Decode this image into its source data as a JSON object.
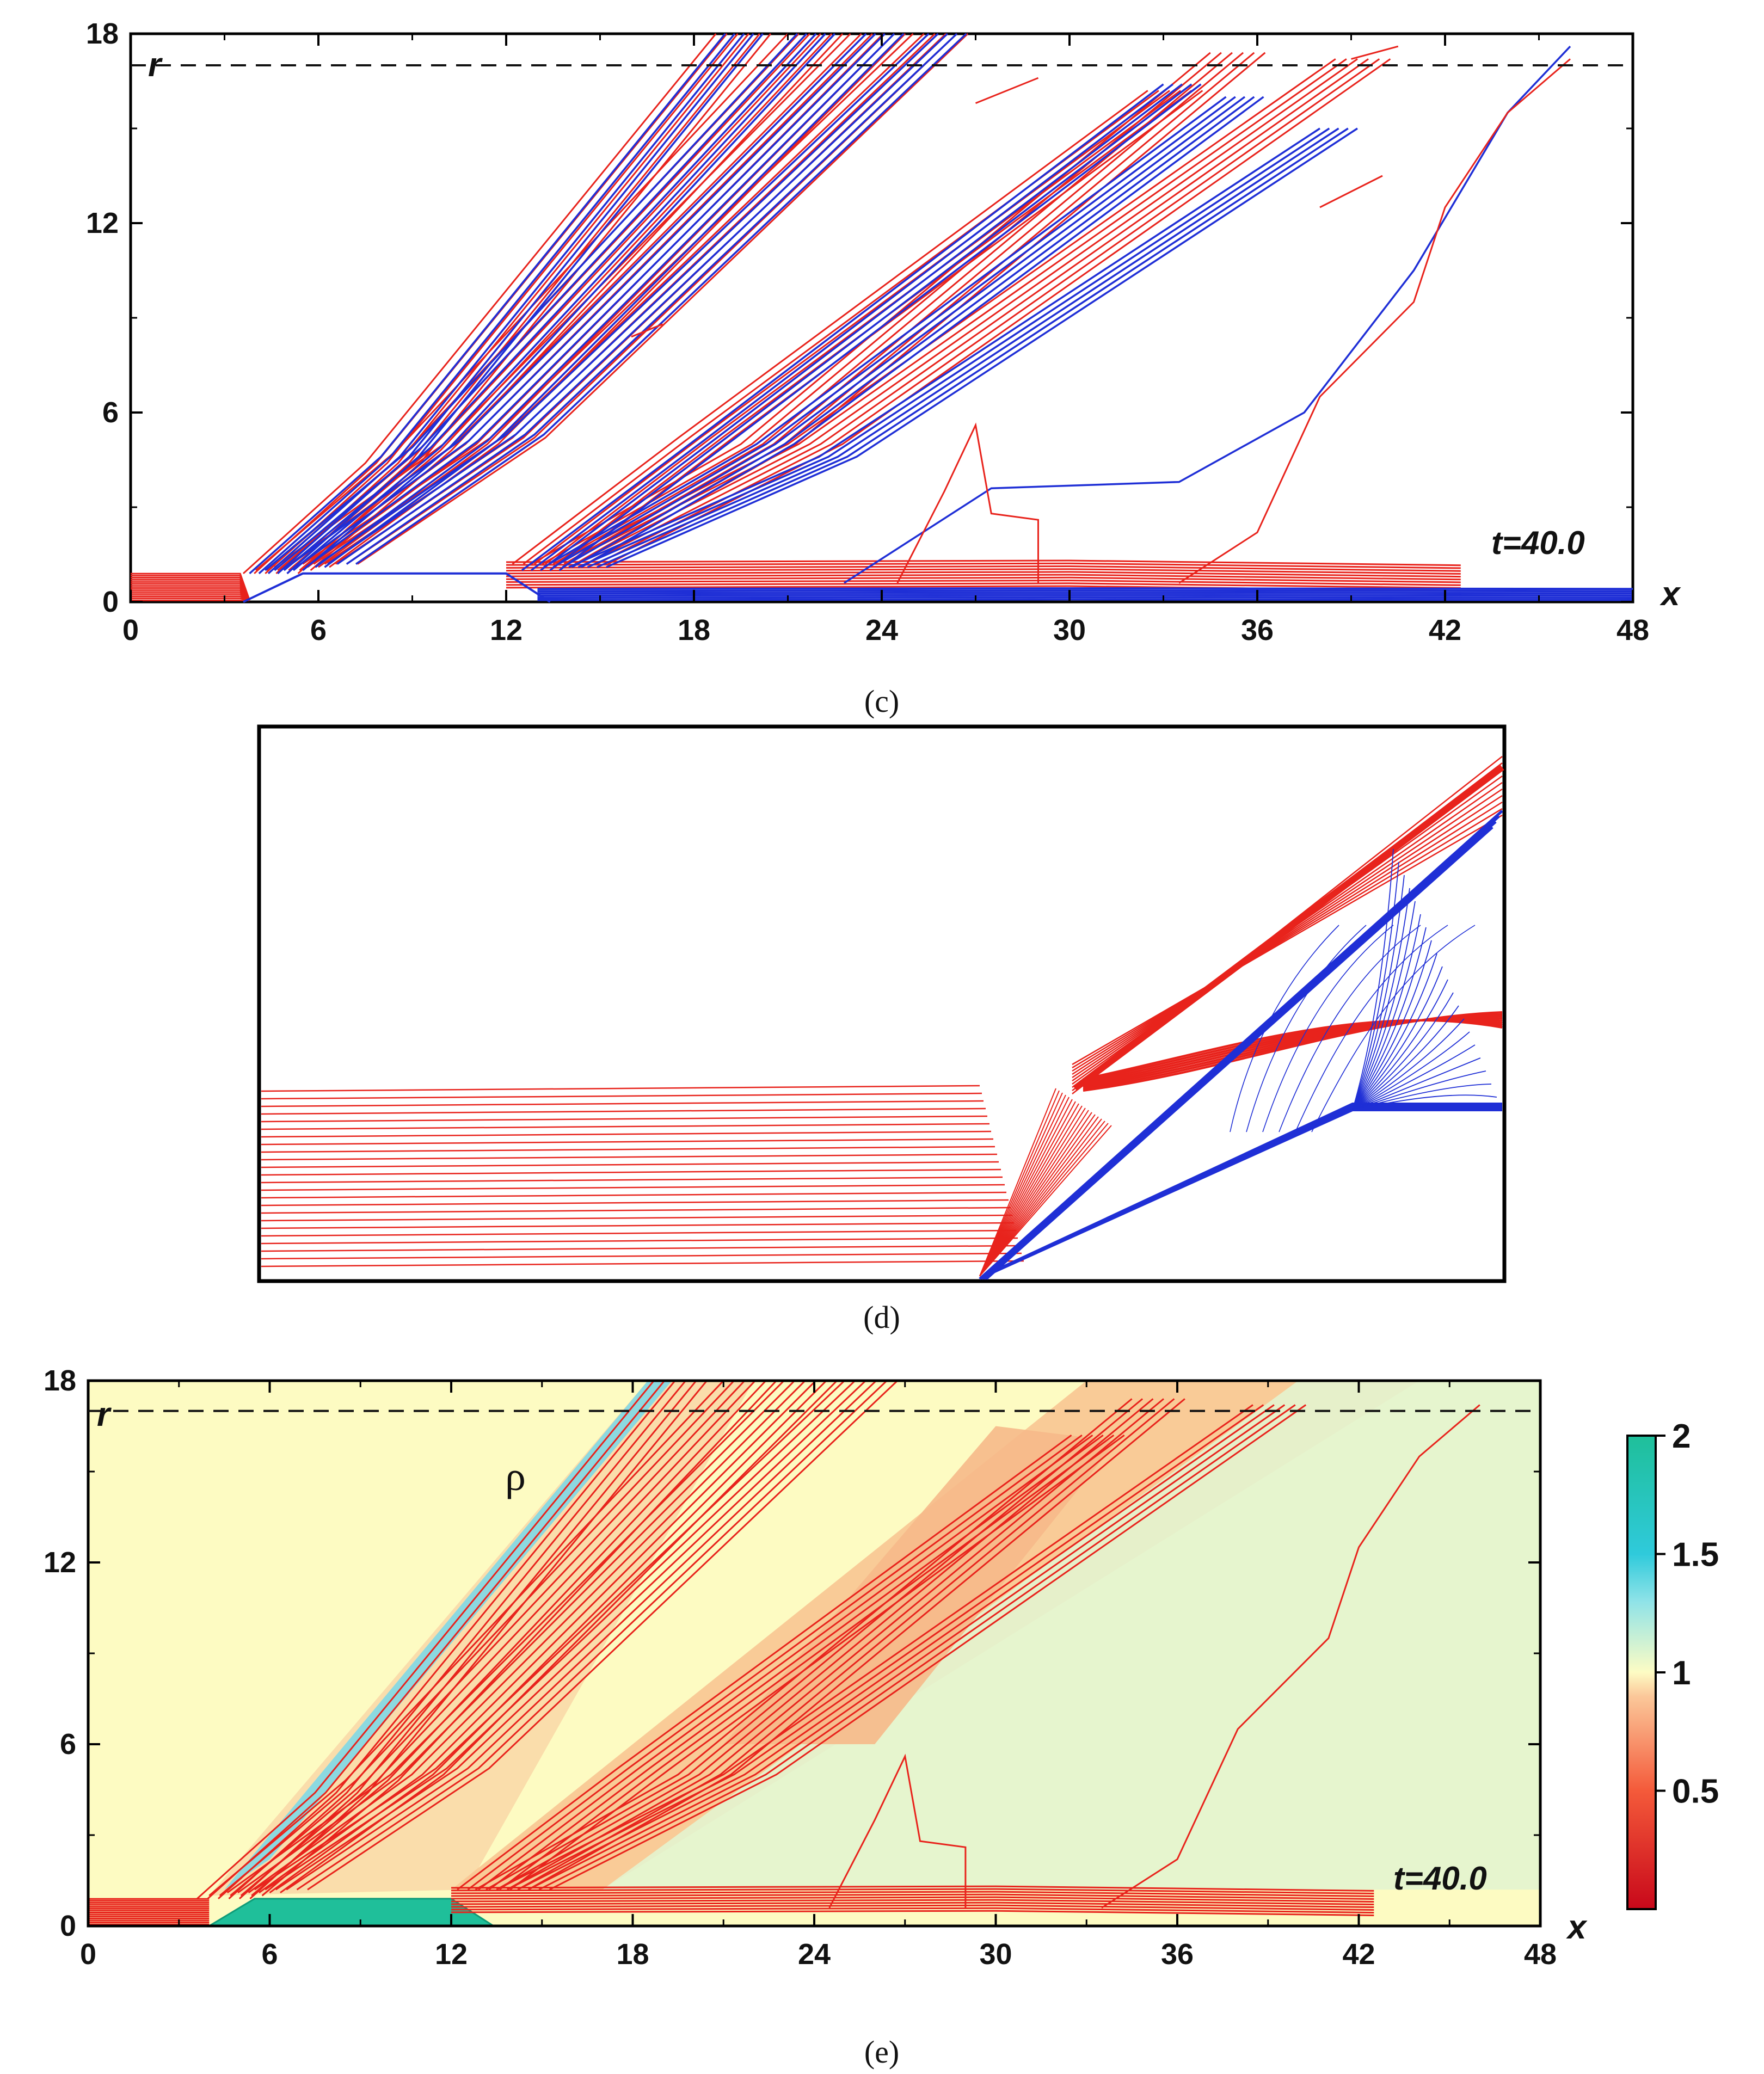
{
  "chart_data": [
    {
      "id": "c",
      "type": "contour",
      "caption": "(c)",
      "xlabel": "x",
      "ylabel": "r",
      "xlim": [
        0,
        48
      ],
      "ylim": [
        0,
        18
      ],
      "x_ticks": [
        "0",
        "6",
        "12",
        "18",
        "24",
        "30",
        "36",
        "42",
        "48"
      ],
      "y_ticks": [
        "0",
        "6",
        "12",
        "18"
      ],
      "time_label": "t=40.0",
      "dashed_line_r": 17.0,
      "colors": {
        "red": "#e8231c",
        "blue": "#1f2fd6"
      },
      "red_rays": [
        [
          [
            3.6,
            0.9
          ],
          [
            7.5,
            4.4
          ],
          [
            18.7,
            18
          ]
        ],
        [
          [
            4.0,
            1.0
          ],
          [
            8.5,
            4.8
          ],
          [
            21.0,
            18
          ]
        ],
        [
          [
            4.6,
            1.1
          ],
          [
            10.0,
            5.0
          ],
          [
            23.0,
            18
          ]
        ],
        [
          [
            5.5,
            1.2
          ],
          [
            11.5,
            5.2
          ],
          [
            25.0,
            18
          ]
        ],
        [
          [
            12.2,
            1.2
          ],
          [
            17.5,
            5.2
          ],
          [
            32.5,
            16.2
          ]
        ],
        [
          [
            12.8,
            1.2
          ],
          [
            19.5,
            5.0
          ],
          [
            34.5,
            17.4
          ]
        ],
        [
          [
            13.5,
            1.2
          ],
          [
            21.0,
            5.0
          ],
          [
            38.5,
            17.2
          ]
        ]
      ],
      "blue_rays": [
        [
          [
            3.8,
            0.9
          ],
          [
            8.0,
            4.6
          ],
          [
            19.0,
            18
          ]
        ],
        [
          [
            4.3,
            1.0
          ],
          [
            9.0,
            4.9
          ],
          [
            21.3,
            18
          ]
        ],
        [
          [
            5.0,
            1.1
          ],
          [
            10.5,
            5.1
          ],
          [
            23.5,
            18
          ]
        ],
        [
          [
            6.0,
            1.2
          ],
          [
            12.0,
            5.3
          ],
          [
            25.5,
            18
          ]
        ],
        [
          [
            12.5,
            1.0
          ],
          [
            18.0,
            5.1
          ],
          [
            33.0,
            16.4
          ]
        ],
        [
          [
            13.2,
            1.1
          ],
          [
            20.0,
            5.0
          ],
          [
            35.0,
            16.0
          ]
        ],
        [
          [
            14.0,
            1.1
          ],
          [
            22.0,
            4.6
          ],
          [
            38.0,
            15.0
          ]
        ],
        [
          [
            22.8,
            0.6
          ],
          [
            27.5,
            3.6
          ],
          [
            33.5,
            3.8
          ],
          [
            37.5,
            6.0
          ],
          [
            41.0,
            10.5
          ],
          [
            44.0,
            15.5
          ],
          [
            46.0,
            17.6
          ]
        ]
      ],
      "red_blobs": [
        [
          [
            24.5,
            0.6
          ],
          [
            26.0,
            3.5
          ],
          [
            27.0,
            5.6
          ],
          [
            27.5,
            2.8
          ],
          [
            29.0,
            2.6
          ],
          [
            29.0,
            0.6
          ]
        ],
        [
          [
            33.5,
            0.6
          ],
          [
            36.0,
            2.2
          ],
          [
            38.0,
            6.5
          ],
          [
            41.0,
            9.5
          ],
          [
            42.0,
            12.5
          ],
          [
            44.0,
            15.5
          ],
          [
            46.0,
            17.2
          ]
        ]
      ]
    },
    {
      "id": "d",
      "type": "contour",
      "caption": "(d)",
      "colors": {
        "red": "#e8231c",
        "blue": "#1f2fd6"
      }
    },
    {
      "id": "e",
      "type": "heatmap",
      "caption": "(e)",
      "field_label": "ρ",
      "xlabel": "x",
      "ylabel": "r",
      "xlim": [
        0,
        48
      ],
      "ylim": [
        0,
        18
      ],
      "x_ticks": [
        "0",
        "6",
        "12",
        "18",
        "24",
        "30",
        "36",
        "42",
        "48"
      ],
      "y_ticks": [
        "0",
        "6",
        "12",
        "18"
      ],
      "time_label": "t=40.0",
      "dashed_line_r": 17.0,
      "colorbar": {
        "min": 0,
        "max": 2,
        "ticks": [
          "2",
          "1.5",
          "1",
          "0.5"
        ],
        "tick_values": [
          2,
          1.5,
          1,
          0.5
        ],
        "stops": [
          {
            "value": 0.0,
            "color": "#c8081a"
          },
          {
            "value": 0.5,
            "color": "#f45a3a"
          },
          {
            "value": 0.9,
            "color": "#fbc89a"
          },
          {
            "value": 1.0,
            "color": "#fdfcc4"
          },
          {
            "value": 1.3,
            "color": "#8fe3e8"
          },
          {
            "value": 1.5,
            "color": "#2fcadb"
          },
          {
            "value": 2.0,
            "color": "#1fbf9a"
          }
        ]
      },
      "background_color": "#fdfbc2"
    }
  ]
}
